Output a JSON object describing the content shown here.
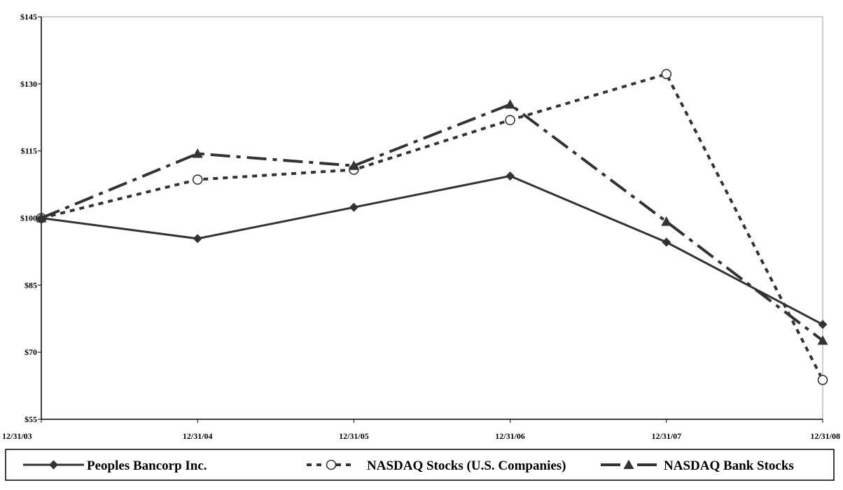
{
  "chart_data": {
    "type": "line",
    "title": "",
    "xlabel": "",
    "ylabel": "",
    "categories": [
      "12/31/03",
      "12/31/04",
      "12/31/05",
      "12/31/06",
      "12/31/07",
      "12/31/08"
    ],
    "y_tick_labels": [
      "$55",
      "$70",
      "$85",
      "$100",
      "$115",
      "$130",
      "$145"
    ],
    "y_ticks": [
      55,
      70,
      85,
      100,
      115,
      130,
      145
    ],
    "ylim": [
      55,
      145
    ],
    "grid": false,
    "legend_position": "bottom",
    "series": [
      {
        "name": "Peoples Bancorp Inc.",
        "values": [
          100,
          95.4,
          102.4,
          109.4,
          94.6,
          76.2
        ],
        "marker": "diamond",
        "line_style": "solid",
        "color": "#333333"
      },
      {
        "name": "NASDAQ Stocks (U.S. Companies)",
        "values": [
          100,
          108.6,
          110.8,
          121.9,
          132.2,
          63.8
        ],
        "marker": "circle",
        "line_style": "short-dash",
        "color": "#333333"
      },
      {
        "name": "NASDAQ Bank Stocks",
        "values": [
          100,
          114.4,
          111.7,
          125.4,
          99.2,
          72.6
        ],
        "marker": "triangle",
        "line_style": "long-dash-dot",
        "color": "#333333"
      }
    ]
  }
}
